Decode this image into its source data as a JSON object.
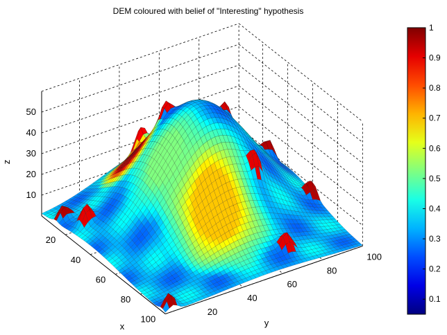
{
  "chart_data": {
    "type": "surface",
    "title": "DEM coloured with belief of \"Interesting\" hypothesis",
    "xlabel": "x",
    "ylabel": "y",
    "zlabel": "z",
    "xlim": [
      1,
      100
    ],
    "ylim": [
      1,
      100
    ],
    "zlim": [
      0,
      55
    ],
    "xticks": [
      "20",
      "40",
      "60",
      "80",
      "100"
    ],
    "yticks": [
      "20",
      "40",
      "60",
      "80",
      "100"
    ],
    "zticks": [
      "10",
      "20",
      "30",
      "40",
      "50"
    ],
    "grid": true,
    "colormap": "jet",
    "colorbar": {
      "range": [
        0.05,
        1
      ],
      "ticks": [
        "0.1",
        "0.2",
        "0.3",
        "0.4",
        "0.5",
        "0.6",
        "0.7",
        "0.8",
        "0.9",
        "1"
      ]
    },
    "surface": {
      "description_grid": "100 x 100 grid, z = central dome of height ~55 centred near (x=40, y=55), tapering to ~0 at edges",
      "dome": {
        "center_x": 40,
        "center_y": 55,
        "height": 55,
        "sigma": 24
      },
      "bumps": [
        {
          "x": 12,
          "y": 5,
          "height": 6,
          "belief": 0.95
        },
        {
          "x": 25,
          "y": 8,
          "height": 8,
          "belief": 0.9
        },
        {
          "x": 10,
          "y": 45,
          "height": 10,
          "belief": 0.88
        },
        {
          "x": 25,
          "y": 48,
          "height": 8,
          "belief": 0.9
        },
        {
          "x": 30,
          "y": 75,
          "height": 9,
          "belief": 0.92
        },
        {
          "x": 62,
          "y": 70,
          "height": 8,
          "belief": 0.9
        },
        {
          "x": 38,
          "y": 92,
          "height": 8,
          "belief": 0.95
        },
        {
          "x": 62,
          "y": 98,
          "height": 7,
          "belief": 0.95
        },
        {
          "x": 97,
          "y": 5,
          "height": 7,
          "belief": 0.95
        },
        {
          "x": 90,
          "y": 68,
          "height": 7,
          "belief": 0.9
        }
      ],
      "belief_regions": [
        {
          "x": 18,
          "y": 35,
          "radius": 14,
          "belief": 0.95
        },
        {
          "x": 70,
          "y": 45,
          "radius": 25,
          "belief": 0.68
        },
        {
          "x": 45,
          "y": 35,
          "radius": 18,
          "belief": 0.5
        }
      ]
    }
  }
}
